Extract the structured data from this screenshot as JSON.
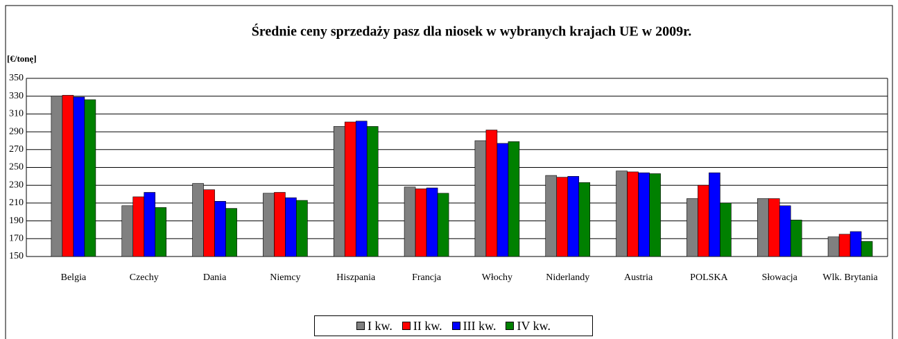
{
  "chart_data": {
    "type": "bar",
    "title": "Średnie ceny sprzedaży pasz dla niosek w wybranych krajach UE w 2009r.",
    "y_label": "[€/tonę]",
    "categories": [
      "Belgia",
      "Czechy",
      "Dania",
      "Niemcy",
      "Hiszpania",
      "Francja",
      "Włochy",
      "Niderlandy",
      "Austria",
      "POLSKA",
      "Słowacja",
      "Wlk. Brytania"
    ],
    "series": [
      {
        "name": "I kw.",
        "color": "#808080",
        "values": [
          330,
          207,
          232,
          221,
          296,
          228,
          280,
          241,
          246,
          215,
          215,
          172
        ]
      },
      {
        "name": "II kw.",
        "color": "#ff0000",
        "values": [
          331,
          217,
          225,
          222,
          301,
          226,
          292,
          239,
          245,
          230,
          215,
          175
        ]
      },
      {
        "name": "III kw.",
        "color": "#0000ff",
        "values": [
          329,
          222,
          212,
          216,
          302,
          227,
          277,
          240,
          244,
          244,
          207,
          178
        ]
      },
      {
        "name": "IV kw.",
        "color": "#008000",
        "values": [
          326,
          205,
          204,
          213,
          296,
          221,
          279,
          233,
          243,
          210,
          191,
          167
        ]
      }
    ],
    "ylim": [
      150,
      350
    ],
    "yticks": [
      150,
      170,
      190,
      210,
      230,
      250,
      270,
      290,
      310,
      330,
      350
    ],
    "grid": true
  }
}
